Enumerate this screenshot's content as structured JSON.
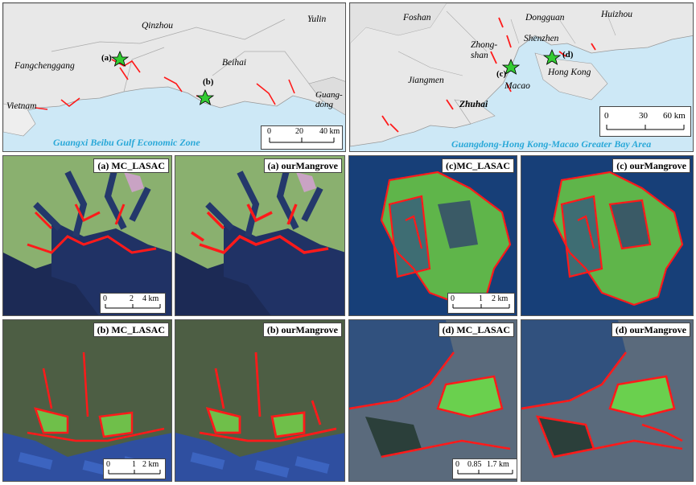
{
  "maps": {
    "guangxi": {
      "caption": "Guangxi Beibu Gulf Economic Zone",
      "places": [
        "Qinzhou",
        "Yulin",
        "Fangchenggang",
        "Beihai",
        "Guang-\ndong",
        "Vietnam"
      ],
      "points": [
        "(a)",
        "(b)"
      ],
      "scale": {
        "ticks": [
          "0",
          "20",
          "40 km"
        ]
      }
    },
    "gba": {
      "caption": "Guangdong-Hong Kong-Macao Greater Bay Area",
      "places": [
        "Foshan",
        "Dongguan",
        "Huizhou",
        "Zhong-\nshan",
        "Shenzhen",
        "Jiangmen",
        "Macao",
        "Hong Kong",
        "Zhuhai"
      ],
      "points": [
        "(c)",
        "(d)"
      ],
      "scale": {
        "ticks": [
          "0",
          "30",
          "60 km"
        ]
      }
    }
  },
  "panels": {
    "a_lasac": {
      "title": "(a) MC_LASAC"
    },
    "a_our": {
      "title": "(a) ourMangrove"
    },
    "b_lasac": {
      "title": "(b) MC_LASAC"
    },
    "b_our": {
      "title": "(b) ourMangrove"
    },
    "c_lasac": {
      "title": "(c)MC_LASAC"
    },
    "c_our": {
      "title": "(c) ourMangrove"
    },
    "d_lasac": {
      "title": "(d) MC_LASAC"
    },
    "d_our": {
      "title": "(d) ourMangrove"
    }
  },
  "scalebars": {
    "a": [
      "0",
      "2",
      "4 km"
    ],
    "b": [
      "0",
      "1",
      "2 km"
    ],
    "c": [
      "0",
      "1",
      "2 km"
    ],
    "d": [
      "0",
      "0.85",
      "1.7 km"
    ]
  },
  "colors": {
    "mangrove": "#ff1a1a",
    "land": "#e8e8e8",
    "sea": "#cde8f6",
    "caption": "#29a8d8",
    "star": "#33cc33"
  }
}
